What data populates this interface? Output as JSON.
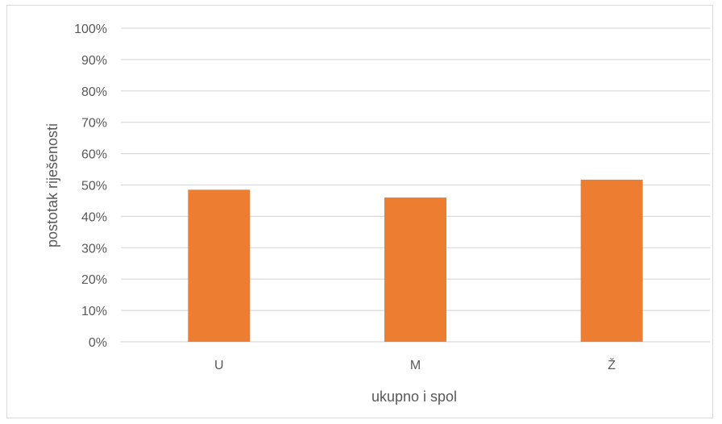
{
  "chart_data": {
    "type": "bar",
    "categories": [
      "U",
      "M",
      "Ž"
    ],
    "values": [
      48.5,
      46,
      51.7
    ],
    "xlabel": "ukupno i spol",
    "ylabel": "postotak riješenosti",
    "ylim": [
      0,
      100
    ],
    "yticks": [
      0,
      10,
      20,
      30,
      40,
      50,
      60,
      70,
      80,
      90,
      100
    ],
    "tick_suffix": "%",
    "grid": true,
    "legend": "none",
    "bar_color": "#ED7D31",
    "gridline_color": "#D9D9D9",
    "text_color": "#595959"
  }
}
